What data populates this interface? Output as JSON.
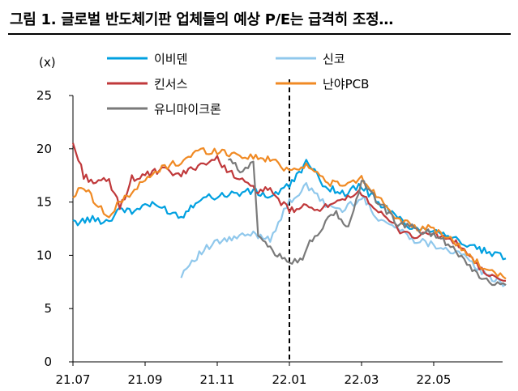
{
  "title": "그림 1. 글로벌 반도체기판 업체들의 예상 P/E는 급격히 조정…",
  "chart_data": {
    "type": "line",
    "unit_label": "(x)",
    "ylim": [
      0,
      25
    ],
    "y_ticks": [
      "0",
      "5",
      "10",
      "15",
      "20",
      "25"
    ],
    "x_ticks": [
      "21.07",
      "21.09",
      "21.11",
      "22.01",
      "22.03",
      "22.05"
    ],
    "xlim": [
      "21.07",
      "22.07"
    ],
    "vertical_marker": "22.01",
    "grid": false,
    "legend_position": "top",
    "series": [
      {
        "name": "이비덴",
        "color": "#00a0e0",
        "points": [
          [
            "21.07",
            13.0
          ],
          [
            "21.07.15",
            13.4
          ],
          [
            "21.08",
            13.2
          ],
          [
            "21.08.10",
            14.5
          ],
          [
            "21.08.20",
            14.0
          ],
          [
            "21.09",
            14.8
          ],
          [
            "21.09.15",
            14.5
          ],
          [
            "21.10",
            13.6
          ],
          [
            "21.10.15",
            15.3
          ],
          [
            "21.11",
            15.6
          ],
          [
            "21.11.15",
            15.8
          ],
          [
            "21.12",
            16.0
          ],
          [
            "21.12.15",
            15.5
          ],
          [
            "22.01",
            16.5
          ],
          [
            "22.01.07",
            17.5
          ],
          [
            "22.01.15",
            18.7
          ],
          [
            "22.02",
            16.5
          ],
          [
            "22.02.15",
            15.8
          ],
          [
            "22.03",
            16.5
          ],
          [
            "22.03.15",
            15.0
          ],
          [
            "22.04",
            13.5
          ],
          [
            "22.04.15",
            12.5
          ],
          [
            "22.05",
            12.5
          ],
          [
            "22.05.15",
            11.8
          ],
          [
            "22.06",
            10.8
          ],
          [
            "22.06.15",
            10.3
          ],
          [
            "22.07",
            9.7
          ]
        ]
      },
      {
        "name": "신코",
        "color": "#90c8ec",
        "points": [
          [
            "21.10",
            8.2
          ],
          [
            "21.10.10",
            9.5
          ],
          [
            "21.10.20",
            10.5
          ],
          [
            "21.11",
            11.2
          ],
          [
            "21.11.15",
            11.6
          ],
          [
            "21.12",
            12.0
          ],
          [
            "21.12.15",
            11.6
          ],
          [
            "22.01",
            15.0
          ],
          [
            "22.01.15",
            16.5
          ],
          [
            "22.02",
            14.8
          ],
          [
            "22.02.15",
            14.2
          ],
          [
            "22.03",
            15.5
          ],
          [
            "22.03.15",
            13.5
          ],
          [
            "22.04",
            12.5
          ],
          [
            "22.04.15",
            11.5
          ],
          [
            "22.05",
            11.0
          ],
          [
            "22.05.15",
            10.5
          ],
          [
            "22.06",
            9.5
          ],
          [
            "22.06.15",
            8.0
          ],
          [
            "22.07",
            7.3
          ]
        ]
      },
      {
        "name": "킨서스",
        "color": "#c0393b",
        "points": [
          [
            "21.07",
            20.5
          ],
          [
            "21.07.10",
            17.5
          ],
          [
            "21.07.20",
            16.8
          ],
          [
            "21.08",
            17.0
          ],
          [
            "21.08.10",
            14.5
          ],
          [
            "21.08.20",
            17.2
          ],
          [
            "21.09",
            17.5
          ],
          [
            "21.09.15",
            18.0
          ],
          [
            "21.10",
            17.5
          ],
          [
            "21.10.15",
            18.5
          ],
          [
            "21.11",
            19.0
          ],
          [
            "21.11.15",
            17.5
          ],
          [
            "21.12",
            16.2
          ],
          [
            "21.12.15",
            16.0
          ],
          [
            "22.01",
            14.2
          ],
          [
            "22.01.15",
            14.5
          ],
          [
            "22.02",
            14.5
          ],
          [
            "22.02.15",
            15.0
          ],
          [
            "22.03",
            16.0
          ],
          [
            "22.03.15",
            14.0
          ],
          [
            "22.04",
            12.5
          ],
          [
            "22.04.15",
            11.8
          ],
          [
            "22.05",
            12.0
          ],
          [
            "22.05.15",
            11.5
          ],
          [
            "22.06",
            10.0
          ],
          [
            "22.06.15",
            8.0
          ],
          [
            "22.07",
            7.6
          ]
        ]
      },
      {
        "name": "난야PCB",
        "color": "#f08a24",
        "points": [
          [
            "21.07",
            15.5
          ],
          [
            "21.07.10",
            16.5
          ],
          [
            "21.07.20",
            15.0
          ],
          [
            "21.08",
            13.5
          ],
          [
            "21.08.10",
            15.0
          ],
          [
            "21.08.20",
            16.0
          ],
          [
            "21.09",
            17.0
          ],
          [
            "21.09.15",
            18.2
          ],
          [
            "21.10",
            18.8
          ],
          [
            "21.10.15",
            19.8
          ],
          [
            "21.11",
            19.8
          ],
          [
            "21.11.15",
            19.5
          ],
          [
            "21.12",
            19.2
          ],
          [
            "21.12.15",
            19.0
          ],
          [
            "22.01",
            18.0
          ],
          [
            "22.01.15",
            18.5
          ],
          [
            "22.02",
            17.0
          ],
          [
            "22.02.15",
            16.5
          ],
          [
            "22.03",
            17.2
          ],
          [
            "22.03.15",
            15.5
          ],
          [
            "22.04",
            13.5
          ],
          [
            "22.04.15",
            12.5
          ],
          [
            "22.05",
            12.5
          ],
          [
            "22.05.15",
            11.5
          ],
          [
            "22.06",
            10.0
          ],
          [
            "22.06.15",
            8.5
          ],
          [
            "22.07",
            7.8
          ]
        ]
      },
      {
        "name": "유니마이크론",
        "color": "#7a7a7a",
        "points": [
          [
            "21.11.10",
            19.0
          ],
          [
            "21.11.20",
            18.0
          ],
          [
            "21.12",
            18.8
          ],
          [
            "21.12.05",
            12.0
          ],
          [
            "21.12.15",
            10.5
          ],
          [
            "21.12.25",
            10.0
          ],
          [
            "22.01",
            9.5
          ],
          [
            "22.01.10",
            9.5
          ],
          [
            "22.01.20",
            11.5
          ],
          [
            "22.02",
            13.0
          ],
          [
            "22.02.10",
            14.0
          ],
          [
            "22.02.20",
            12.5
          ],
          [
            "22.03",
            17.0
          ],
          [
            "22.03.15",
            15.0
          ],
          [
            "22.04",
            13.0
          ],
          [
            "22.04.15",
            12.5
          ],
          [
            "22.05",
            12.0
          ],
          [
            "22.05.15",
            11.0
          ],
          [
            "22.06",
            9.0
          ],
          [
            "22.06.15",
            7.5
          ],
          [
            "22.07",
            7.2
          ]
        ]
      }
    ]
  }
}
